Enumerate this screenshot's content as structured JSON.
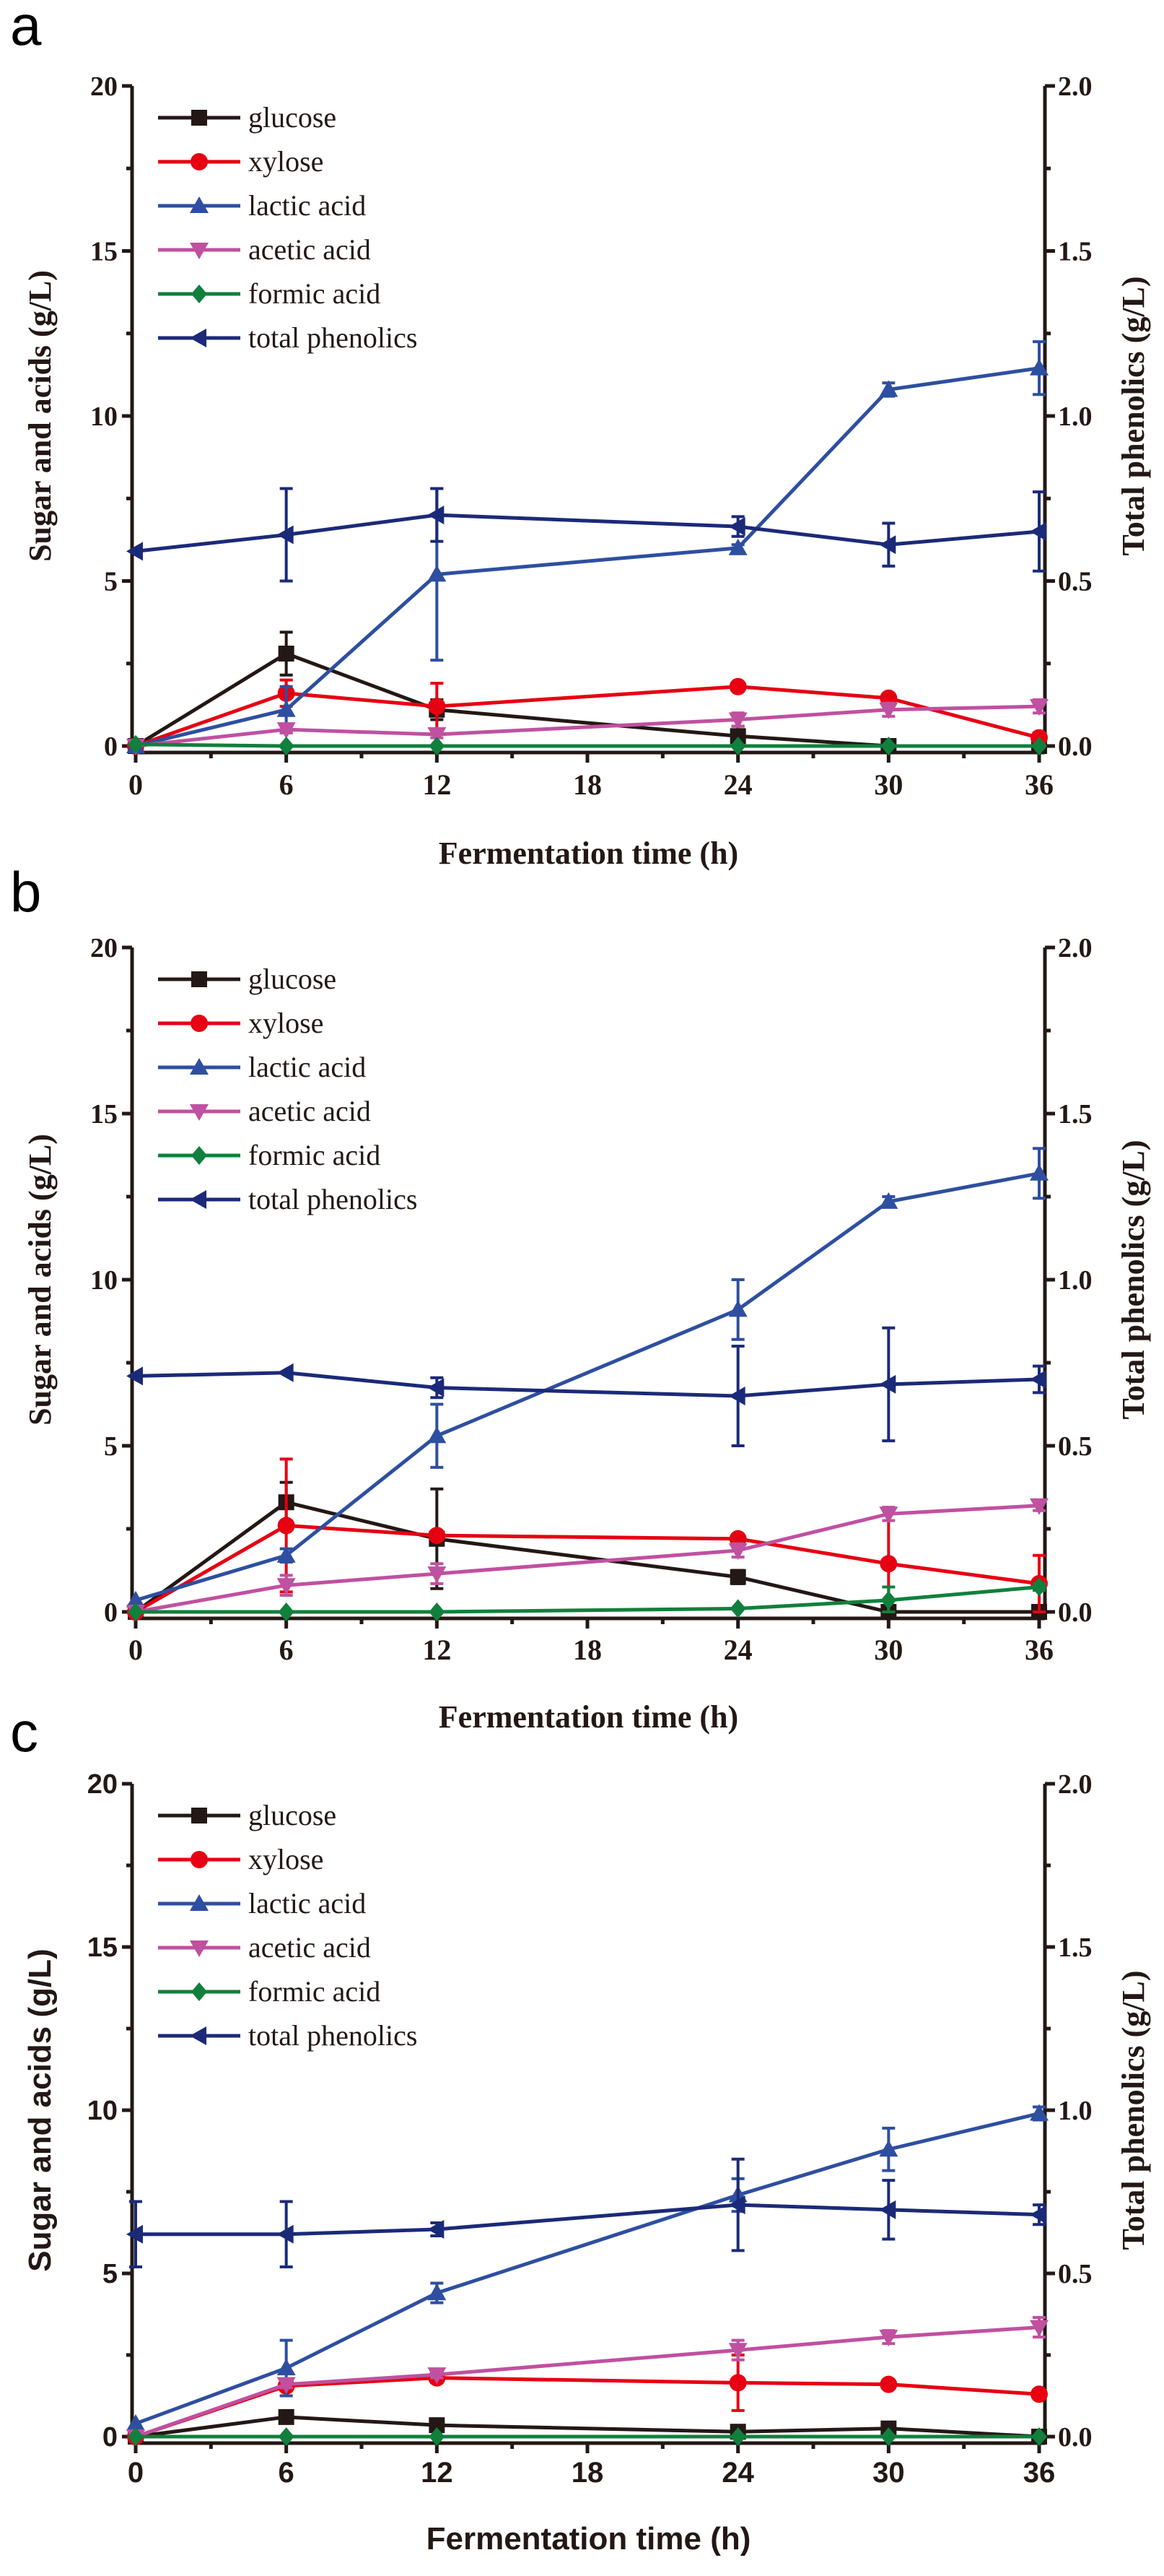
{
  "colors": {
    "glucose": "#231815",
    "xylose": "#e60012",
    "lactic acid": "#2e4fa0",
    "acetic acid": "#c050a0",
    "formic acid": "#10803c",
    "total phenolics": "#1b2a78"
  },
  "chart_data": [
    {
      "panel": "a",
      "type": "line",
      "xlabel": "Fermentation time (h)",
      "ylabel": "Sugar and acids (g/L)",
      "y2label": "Total phenolics (g/L)",
      "x": [
        0,
        6,
        12,
        24,
        30,
        36
      ],
      "xticks": [
        "0",
        "6",
        "12",
        "18",
        "24",
        "30",
        "36"
      ],
      "xlim": [
        0,
        36
      ],
      "ylim": [
        0,
        20
      ],
      "y2lim": [
        0,
        2.0
      ],
      "yticks": [
        "0",
        "5",
        "10",
        "15",
        "20"
      ],
      "y2ticks": [
        "0.0",
        "0.5",
        "1.0",
        "1.5",
        "2.0"
      ],
      "legend_position": "top-left",
      "series": [
        {
          "name": "glucose",
          "axis": "left",
          "marker": "square",
          "values": [
            0,
            2.8,
            1.1,
            0.3,
            0,
            0
          ],
          "errors": [
            0,
            0.65,
            0.3,
            0.3,
            0,
            0
          ]
        },
        {
          "name": "xylose",
          "axis": "left",
          "marker": "circle",
          "values": [
            0,
            1.6,
            1.2,
            1.8,
            1.45,
            0.25
          ],
          "errors": [
            0,
            0.4,
            0.7,
            0.1,
            0.1,
            0.15
          ]
        },
        {
          "name": "lactic acid",
          "axis": "left",
          "marker": "triangle-up",
          "values": [
            0,
            1.1,
            5.2,
            6.0,
            10.8,
            11.45
          ],
          "errors": [
            0,
            0.7,
            2.6,
            0.1,
            0.2,
            0.8
          ]
        },
        {
          "name": "acetic acid",
          "axis": "left",
          "marker": "triangle-down",
          "values": [
            0,
            0.5,
            0.35,
            0.8,
            1.1,
            1.2
          ],
          "errors": [
            0,
            0.1,
            0.1,
            0.2,
            0.2,
            0.2
          ]
        },
        {
          "name": "formic acid",
          "axis": "left",
          "marker": "diamond",
          "values": [
            0.05,
            0,
            0,
            0,
            0,
            0
          ],
          "errors": [
            0,
            0,
            0,
            0,
            0,
            0
          ]
        },
        {
          "name": "total phenolics",
          "axis": "right",
          "marker": "triangle-left",
          "values": [
            0.59,
            0.64,
            0.7,
            0.665,
            0.61,
            0.65
          ],
          "errors": [
            0,
            0.14,
            0.08,
            0.03,
            0.065,
            0.12
          ]
        }
      ]
    },
    {
      "panel": "b",
      "type": "line",
      "xlabel": "Fermentation time (h)",
      "ylabel": "Sugar and acids (g/L)",
      "y2label": "Total phenolics (g/L)",
      "x": [
        0,
        6,
        12,
        24,
        30,
        36
      ],
      "xticks": [
        "0",
        "6",
        "12",
        "18",
        "24",
        "30",
        "36"
      ],
      "xlim": [
        0,
        36
      ],
      "ylim": [
        0,
        20
      ],
      "y2lim": [
        0,
        2.0
      ],
      "yticks": [
        "0",
        "5",
        "10",
        "15",
        "20"
      ],
      "y2ticks": [
        "0.0",
        "0.5",
        "1.0",
        "1.5",
        "2.0"
      ],
      "legend_position": "top-left",
      "series": [
        {
          "name": "glucose",
          "axis": "left",
          "marker": "square",
          "values": [
            0,
            3.3,
            2.2,
            1.05,
            0,
            0
          ],
          "errors": [
            0,
            0.6,
            1.5,
            0.2,
            0,
            0
          ]
        },
        {
          "name": "xylose",
          "axis": "left",
          "marker": "circle",
          "values": [
            0,
            2.6,
            2.3,
            2.2,
            1.45,
            0.85
          ],
          "errors": [
            0,
            2.0,
            0.1,
            0.1,
            1.6,
            0.85
          ]
        },
        {
          "name": "lactic acid",
          "axis": "left",
          "marker": "triangle-up",
          "values": [
            0.35,
            1.7,
            5.3,
            9.1,
            12.35,
            13.2
          ],
          "errors": [
            0,
            0.2,
            0.95,
            0.9,
            0.15,
            0.75
          ]
        },
        {
          "name": "acetic acid",
          "axis": "left",
          "marker": "triangle-down",
          "values": [
            0,
            0.8,
            1.15,
            1.85,
            2.95,
            3.2
          ],
          "errors": [
            0,
            0.3,
            0.3,
            0.2,
            0.2,
            0.15
          ]
        },
        {
          "name": "formic acid",
          "axis": "left",
          "marker": "diamond",
          "values": [
            0,
            0,
            0,
            0.1,
            0.35,
            0.75
          ],
          "errors": [
            0,
            0,
            0,
            0,
            0.4,
            0.1
          ]
        },
        {
          "name": "total phenolics",
          "axis": "right",
          "marker": "triangle-left",
          "values": [
            0.71,
            0.72,
            0.675,
            0.65,
            0.685,
            0.7
          ],
          "errors": [
            0,
            0,
            0.03,
            0.15,
            0.17,
            0.04
          ]
        }
      ]
    },
    {
      "panel": "c",
      "type": "line",
      "xlabel": "Fermentation time (h)",
      "ylabel": "Sugar and acids (g/L)",
      "y2label": "Total phenolics (g/L)",
      "x": [
        0,
        6,
        12,
        24,
        30,
        36
      ],
      "xticks": [
        "0",
        "6",
        "12",
        "18",
        "24",
        "30",
        "36"
      ],
      "xlim": [
        0,
        36
      ],
      "ylim": [
        0,
        20
      ],
      "y2lim": [
        0,
        2.0
      ],
      "yticks": [
        "0",
        "5",
        "10",
        "15",
        "20"
      ],
      "y2ticks": [
        "0.0",
        "0.5",
        "1.0",
        "1.5",
        "2.0"
      ],
      "legend_position": "top-left",
      "series": [
        {
          "name": "glucose",
          "axis": "left",
          "marker": "square",
          "values": [
            0,
            0.6,
            0.35,
            0.15,
            0.25,
            0
          ],
          "errors": [
            0,
            0.05,
            0.05,
            0.05,
            0.05,
            0
          ]
        },
        {
          "name": "xylose",
          "axis": "left",
          "marker": "circle",
          "values": [
            0,
            1.55,
            1.8,
            1.65,
            1.6,
            1.3
          ],
          "errors": [
            0,
            0.1,
            0.15,
            0.85,
            0.1,
            0.1
          ]
        },
        {
          "name": "lactic acid",
          "axis": "left",
          "marker": "triangle-up",
          "values": [
            0.4,
            2.1,
            4.4,
            7.4,
            8.8,
            9.9
          ],
          "errors": [
            0,
            0.85,
            0.3,
            0.5,
            0.65,
            0.2
          ]
        },
        {
          "name": "acetic acid",
          "axis": "left",
          "marker": "triangle-down",
          "values": [
            0,
            1.6,
            1.9,
            2.65,
            3.05,
            3.35
          ],
          "errors": [
            0,
            0.1,
            0.1,
            0.3,
            0.2,
            0.3
          ]
        },
        {
          "name": "formic acid",
          "axis": "left",
          "marker": "diamond",
          "values": [
            0,
            0,
            0,
            0,
            0,
            0
          ],
          "errors": [
            0,
            0,
            0,
            0,
            0,
            0
          ]
        },
        {
          "name": "total phenolics",
          "axis": "right",
          "marker": "triangle-left",
          "values": [
            0.62,
            0.62,
            0.635,
            0.71,
            0.695,
            0.68
          ],
          "errors": [
            0.1,
            0.1,
            0.02,
            0.14,
            0.09,
            0.03
          ]
        }
      ]
    }
  ]
}
